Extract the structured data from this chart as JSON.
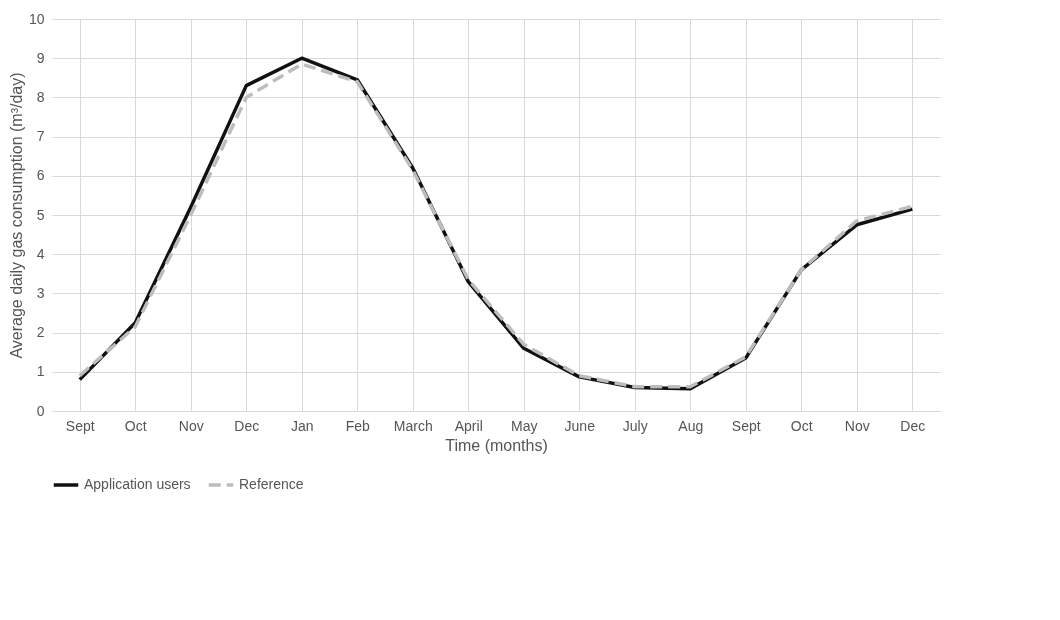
{
  "chart_data": {
    "type": "line",
    "xlabel": "Time (months)",
    "ylabel": "Average daily gas consumption (m³/day)",
    "categories": [
      "Sept",
      "Oct",
      "Nov",
      "Dec",
      "Jan",
      "Feb",
      "March",
      "April",
      "May",
      "June",
      "July",
      "Aug",
      "Sept",
      "Oct",
      "Nov",
      "Dec"
    ],
    "series": [
      {
        "name": "Application users",
        "color": "#111111",
        "line_style": "solid",
        "values": [
          0.8,
          2.25,
          5.2,
          8.3,
          9.0,
          8.45,
          6.2,
          3.3,
          1.6,
          0.87,
          0.6,
          0.57,
          1.35,
          3.6,
          4.75,
          5.15
        ]
      },
      {
        "name": "Reference",
        "color": "#bdbdbd",
        "line_style": "dashed",
        "values": [
          0.9,
          2.15,
          5.0,
          8.0,
          8.85,
          8.4,
          6.15,
          3.35,
          1.7,
          0.9,
          0.62,
          0.62,
          1.38,
          3.6,
          4.85,
          5.22
        ]
      }
    ],
    "ylim": [
      0,
      10
    ],
    "yticks": [
      0,
      1,
      2,
      3,
      4,
      5,
      6,
      7,
      8,
      9,
      10
    ],
    "grid": true,
    "legend": "bottom",
    "marker": "none"
  }
}
